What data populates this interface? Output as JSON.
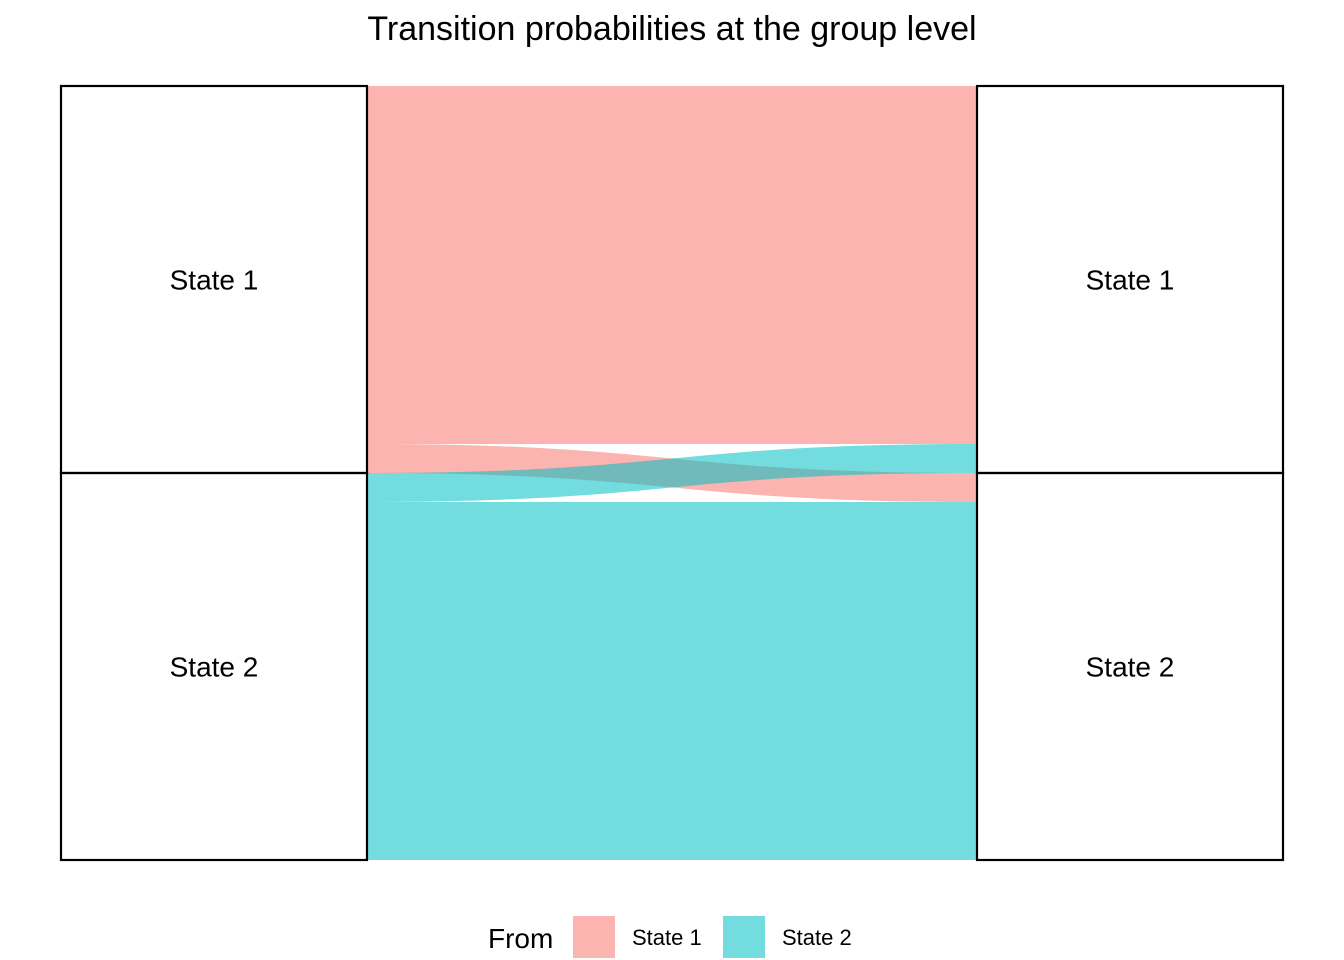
{
  "chart_data": {
    "type": "alluvial",
    "title": "Transition probabilities at the group level",
    "states": [
      "State 1",
      "State 2"
    ],
    "left_axis_nodes": [
      "State 1",
      "State 2"
    ],
    "right_axis_nodes": [
      "State 1",
      "State 2"
    ],
    "flows": [
      {
        "from": "State 1",
        "to": "State 1",
        "value": 0.925
      },
      {
        "from": "State 1",
        "to": "State 2",
        "value": 0.075
      },
      {
        "from": "State 2",
        "to": "State 1",
        "value": 0.075
      },
      {
        "from": "State 2",
        "to": "State 2",
        "value": 0.925
      }
    ],
    "legend": {
      "title": "From",
      "placement": "bottom",
      "entries": [
        {
          "label": "State 1",
          "color": "#F8766D"
        },
        {
          "label": "State 2",
          "color": "#00BFC4"
        }
      ]
    },
    "flow_opacity": 0.55
  }
}
